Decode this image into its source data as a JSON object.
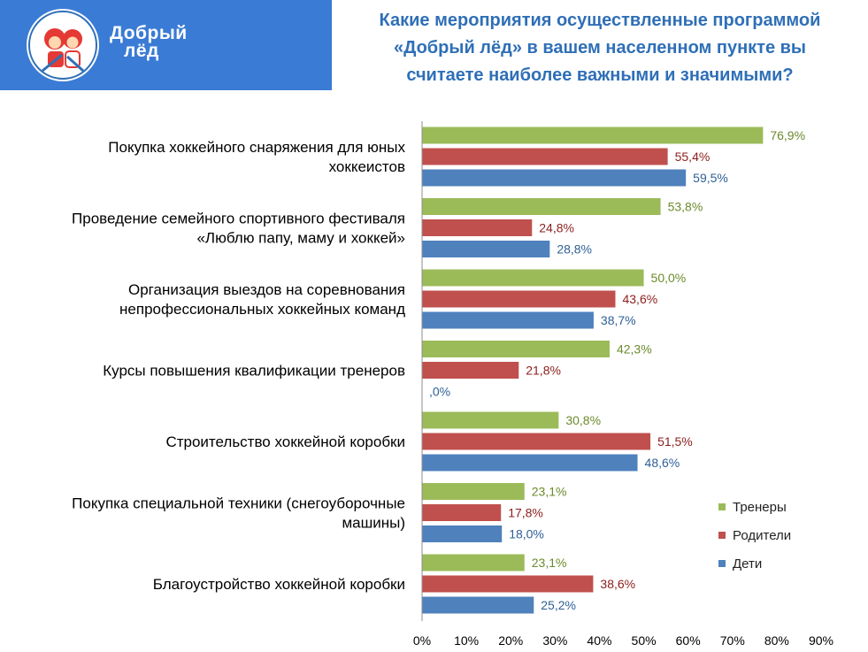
{
  "header": {
    "logo_text_line1": "Добрый",
    "logo_text_line2": "лёд",
    "title_lines": [
      "Какие мероприятия осуществленные программой",
      "«Добрый лёд» в вашем населенном пункте вы",
      "считаете наиболее важными и значимыми?"
    ]
  },
  "colors": {
    "banner": "#3a7bd5",
    "title": "#2f6fb7",
    "series": [
      "#9bbb59",
      "#c0504d",
      "#4f81bd"
    ],
    "labels": [
      "#6b8a2b",
      "#8b1e1b",
      "#2e5f96"
    ]
  },
  "chart_data": {
    "type": "bar",
    "orientation": "horizontal",
    "categories": [
      [
        "Покупка хоккейного снаряжения для юных",
        "хоккеистов"
      ],
      [
        "Проведение семейного спортивного фестиваля",
        "«Люблю папу, маму и хоккей»"
      ],
      [
        "Организация выездов на соревнования",
        "непрофессиональных хоккейных команд"
      ],
      [
        "Курсы повышения квалификации тренеров"
      ],
      [
        "Строительство хоккейной коробки"
      ],
      [
        "Покупка специальной техники (снегоуборочные",
        "машины)"
      ],
      [
        "Благоустройство хоккейной коробки"
      ]
    ],
    "series": [
      {
        "name": "Тренеры",
        "values": [
          76.9,
          53.8,
          50.0,
          42.3,
          30.8,
          23.1,
          23.1
        ],
        "labels": [
          "76,9%",
          "53,8%",
          "50,0%",
          "42,3%",
          "30,8%",
          "23,1%",
          "23,1%"
        ]
      },
      {
        "name": "Родители",
        "values": [
          55.4,
          24.8,
          43.6,
          21.8,
          51.5,
          17.8,
          38.6
        ],
        "labels": [
          "55,4%",
          "24,8%",
          "43,6%",
          "21,8%",
          "51,5%",
          "17,8%",
          "38,6%"
        ]
      },
      {
        "name": "Дети",
        "values": [
          59.5,
          28.8,
          38.7,
          0.0,
          48.6,
          18.0,
          25.2
        ],
        "labels": [
          "59,5%",
          "28,8%",
          "38,7%",
          ",0%",
          "48,6%",
          "18,0%",
          "25,2%"
        ]
      }
    ],
    "x_ticks": [
      "0%",
      "10%",
      "20%",
      "30%",
      "40%",
      "50%",
      "60%",
      "70%",
      "80%",
      "90%"
    ],
    "xlim": [
      0,
      90
    ],
    "grid": false,
    "legend_position": "right"
  }
}
